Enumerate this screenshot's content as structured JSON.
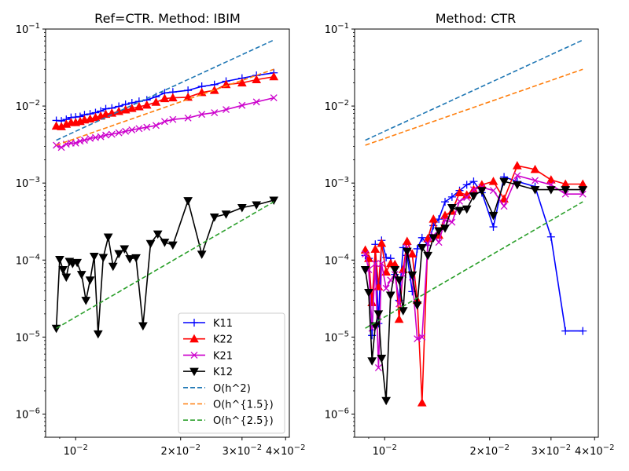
{
  "chart_data": [
    {
      "type": "line",
      "title": "Ref=CTR. Method: IBIM",
      "xscale": "log",
      "yscale": "log",
      "xlim": [
        0.0082,
        0.041
      ],
      "ylim": [
        5e-07,
        0.1
      ],
      "x_tick_labels": [
        "10^-2",
        "2×10^-2",
        "3×10^-2",
        "4×10^-2"
      ],
      "y_tick_labels": [
        "10^-6",
        "10^-5",
        "10^-4",
        "10^-3",
        "10^-2",
        "10^-1"
      ],
      "legend": "lower-right",
      "series": [
        {
          "name": "K11",
          "color": "#0000ff",
          "marker": "plus",
          "dash": "solid",
          "x": [
            0.0088,
            0.0091,
            0.0094,
            0.0097,
            0.01,
            0.0103,
            0.0106,
            0.011,
            0.0114,
            0.0118,
            0.0122,
            0.0127,
            0.0133,
            0.0139,
            0.0145,
            0.0152,
            0.016,
            0.017,
            0.018,
            0.019,
            0.021,
            0.023,
            0.025,
            0.027,
            0.03,
            0.033,
            0.037
          ],
          "y": [
            0.0065,
            0.0064,
            0.0067,
            0.0071,
            0.0072,
            0.0073,
            0.0077,
            0.0079,
            0.0082,
            0.0086,
            0.0092,
            0.0094,
            0.0099,
            0.0105,
            0.011,
            0.0115,
            0.012,
            0.0132,
            0.0148,
            0.0152,
            0.016,
            0.018,
            0.019,
            0.021,
            0.023,
            0.025,
            0.027
          ]
        },
        {
          "name": "K22",
          "color": "#ff0000",
          "marker": "triangle-up",
          "dash": "solid",
          "x": [
            0.0088,
            0.0091,
            0.0094,
            0.0097,
            0.01,
            0.0103,
            0.0106,
            0.011,
            0.0114,
            0.0118,
            0.0122,
            0.0127,
            0.0133,
            0.0139,
            0.0145,
            0.0152,
            0.016,
            0.017,
            0.018,
            0.019,
            0.021,
            0.023,
            0.025,
            0.027,
            0.03,
            0.033,
            0.037
          ],
          "y": [
            0.0055,
            0.0054,
            0.0058,
            0.0061,
            0.0061,
            0.0063,
            0.0066,
            0.0068,
            0.0071,
            0.0074,
            0.0078,
            0.0081,
            0.0085,
            0.0089,
            0.0093,
            0.0098,
            0.0103,
            0.0112,
            0.0125,
            0.0128,
            0.013,
            0.015,
            0.016,
            0.019,
            0.02,
            0.022,
            0.024
          ]
        },
        {
          "name": "K21",
          "color": "#cc00cc",
          "marker": "x",
          "dash": "solid",
          "x": [
            0.0088,
            0.0091,
            0.0094,
            0.0097,
            0.01,
            0.0103,
            0.0106,
            0.011,
            0.0114,
            0.0118,
            0.0122,
            0.0127,
            0.0133,
            0.0139,
            0.0145,
            0.0152,
            0.016,
            0.017,
            0.018,
            0.019,
            0.021,
            0.023,
            0.025,
            0.027,
            0.03,
            0.033,
            0.037
          ],
          "y": [
            0.0031,
            0.0029,
            0.0032,
            0.0033,
            0.0033,
            0.0035,
            0.0036,
            0.0038,
            0.0039,
            0.004,
            0.0042,
            0.0043,
            0.0045,
            0.0047,
            0.0049,
            0.0051,
            0.0053,
            0.0056,
            0.0063,
            0.0067,
            0.007,
            0.0078,
            0.0082,
            0.009,
            0.0102,
            0.0113,
            0.0128
          ]
        },
        {
          "name": "K12",
          "color": "#000000",
          "marker": "triangle-down",
          "dash": "solid",
          "x": [
            0.0088,
            0.009,
            0.0092,
            0.0094,
            0.0096,
            0.0098,
            0.0101,
            0.0104,
            0.0107,
            0.011,
            0.0113,
            0.0116,
            0.012,
            0.0124,
            0.0128,
            0.0133,
            0.0138,
            0.0143,
            0.0149,
            0.0156,
            0.0164,
            0.0172,
            0.018,
            0.019,
            0.021,
            0.023,
            0.025,
            0.027,
            0.03,
            0.033,
            0.037
          ],
          "y": [
            1.3e-05,
            0.000102,
            7.5e-05,
            6e-05,
            9.6e-05,
            9e-05,
            9.3e-05,
            6.5e-05,
            3e-05,
            5.5e-05,
            0.000112,
            1.1e-05,
            0.000108,
            0.000199,
            8.3e-05,
            0.000121,
            0.00014,
            0.000104,
            0.000107,
            1.4e-05,
            0.000164,
            0.000218,
            0.00017,
            0.000157,
            0.00059,
            0.000119,
            0.000362,
            0.000395,
            0.00048,
            0.00052,
            0.0006
          ]
        },
        {
          "name": "O(h^2)",
          "color": "#1f77b4",
          "marker": "none",
          "dash": "dashed",
          "x": [
            0.0088,
            0.037
          ],
          "y": [
            0.0036,
            0.072
          ]
        },
        {
          "name": "O(h^{1.5})",
          "color": "#ff7f0e",
          "marker": "none",
          "dash": "dashed",
          "x": [
            0.0088,
            0.037
          ],
          "y": [
            0.0031,
            0.03
          ]
        },
        {
          "name": "O(h^{2.5})",
          "color": "#2ca02c",
          "marker": "none",
          "dash": "dashed",
          "x": [
            0.0088,
            0.037
          ],
          "y": [
            1.3e-05,
            0.00057
          ]
        }
      ]
    },
    {
      "type": "line",
      "title": "Method: CTR",
      "xscale": "log",
      "yscale": "log",
      "xlim": [
        0.0082,
        0.041
      ],
      "ylim": [
        5e-07,
        0.1
      ],
      "x_tick_labels": [
        "10^-2",
        "2×10^-2",
        "3×10^-2",
        "4×10^-2"
      ],
      "y_tick_labels": [
        "10^-6",
        "10^-5",
        "10^-4",
        "10^-3",
        "10^-2",
        "10^-1"
      ],
      "series": [
        {
          "name": "K11",
          "color": "#0000ff",
          "marker": "plus",
          "dash": "solid",
          "x": [
            0.0088,
            0.009,
            0.0092,
            0.0094,
            0.0096,
            0.0098,
            0.0101,
            0.0104,
            0.0107,
            0.011,
            0.0113,
            0.0116,
            0.012,
            0.0124,
            0.0128,
            0.0133,
            0.0138,
            0.0143,
            0.0149,
            0.0156,
            0.0164,
            0.0172,
            0.018,
            0.019,
            0.0205,
            0.022,
            0.024,
            0.027,
            0.03,
            0.033,
            0.037
          ],
          "y": [
            0.000115,
            0.000105,
            1.05e-05,
            0.00016,
            1.5e-05,
            0.00018,
            0.000108,
            0.000105,
            6.5e-05,
            3e-05,
            0.000145,
            0.000115,
            3.9e-05,
            0.00014,
            0.000195,
            0.000155,
            0.00028,
            0.00034,
            0.00057,
            0.00066,
            0.0008,
            0.00095,
            0.00105,
            0.00075,
            0.00027,
            0.0012,
            0.00105,
            0.0009,
            0.0002,
            1.2e-05,
            1.2e-05
          ]
        },
        {
          "name": "K22",
          "color": "#ff0000",
          "marker": "triangle-up",
          "dash": "solid",
          "x": [
            0.0088,
            0.009,
            0.0092,
            0.0094,
            0.0096,
            0.0098,
            0.0101,
            0.0104,
            0.0107,
            0.011,
            0.0113,
            0.0116,
            0.012,
            0.0124,
            0.0128,
            0.0133,
            0.0138,
            0.0143,
            0.0149,
            0.0156,
            0.0164,
            0.0172,
            0.018,
            0.019,
            0.0205,
            0.022,
            0.024,
            0.027,
            0.03,
            0.033,
            0.037
          ],
          "y": [
            0.000135,
            0.000105,
            2.8e-05,
            0.000138,
            4.5e-05,
            0.000165,
            7e-05,
            9e-05,
            8.8e-05,
            1.7e-05,
            7.5e-05,
            0.000175,
            0.00012,
            3e-05,
            1.4e-06,
            0.00019,
            0.00034,
            0.00021,
            0.00038,
            0.00043,
            0.00075,
            0.0007,
            0.00082,
            0.00095,
            0.00105,
            0.00062,
            0.00168,
            0.0015,
            0.0011,
            0.00097,
            0.00097
          ]
        },
        {
          "name": "K21",
          "color": "#cc00cc",
          "marker": "x",
          "dash": "solid",
          "x": [
            0.0088,
            0.009,
            0.0092,
            0.0094,
            0.0096,
            0.0098,
            0.0101,
            0.0104,
            0.0107,
            0.011,
            0.0113,
            0.0116,
            0.012,
            0.0124,
            0.0128,
            0.0133,
            0.0138,
            0.0143,
            0.0149,
            0.0156,
            0.0164,
            0.0172,
            0.018,
            0.019,
            0.0205,
            0.022,
            0.024,
            0.027,
            0.03,
            0.033,
            0.037
          ],
          "y": [
            0.00012,
            7.5e-05,
            1.3e-05,
            9e-05,
            4e-06,
            9e-05,
            4.3e-05,
            5.5e-05,
            6.5e-05,
            2.7e-05,
            6.5e-05,
            0.000145,
            6e-05,
            9.5e-06,
            1e-05,
            0.000165,
            0.00021,
            0.00017,
            0.00033,
            0.00031,
            0.00058,
            0.00065,
            0.00082,
            0.00088,
            0.0008,
            0.0005,
            0.00125,
            0.00108,
            0.00095,
            0.00072,
            0.00072
          ]
        },
        {
          "name": "K12",
          "color": "#000000",
          "marker": "triangle-down",
          "dash": "solid",
          "x": [
            0.0088,
            0.009,
            0.0092,
            0.0094,
            0.0096,
            0.0098,
            0.0101,
            0.0104,
            0.0107,
            0.011,
            0.0113,
            0.0116,
            0.012,
            0.0124,
            0.0128,
            0.0133,
            0.0138,
            0.0143,
            0.0149,
            0.0156,
            0.0164,
            0.0172,
            0.018,
            0.019,
            0.0205,
            0.022,
            0.024,
            0.027,
            0.03,
            0.033,
            0.037
          ],
          "y": [
            7.5e-05,
            3.8e-05,
            4.9e-06,
            1.4e-05,
            2e-05,
            5.3e-06,
            1.5e-06,
            3.5e-05,
            7.5e-05,
            5.5e-05,
            2.2e-05,
            0.00013,
            6.4e-05,
            2.6e-05,
            0.000145,
            0.000115,
            0.000195,
            0.00024,
            0.00026,
            0.00048,
            0.00044,
            0.00046,
            0.00068,
            0.0008,
            0.00038,
            0.00105,
            0.00095,
            0.00082,
            0.00082,
            0.00082,
            0.00082
          ]
        },
        {
          "name": "O(h^2)",
          "color": "#1f77b4",
          "marker": "none",
          "dash": "dashed",
          "x": [
            0.0088,
            0.037
          ],
          "y": [
            0.0036,
            0.072
          ]
        },
        {
          "name": "O(h^{1.5})",
          "color": "#ff7f0e",
          "marker": "none",
          "dash": "dashed",
          "x": [
            0.0088,
            0.037
          ],
          "y": [
            0.0031,
            0.03
          ]
        },
        {
          "name": "O(h^{2.5})",
          "color": "#2ca02c",
          "marker": "none",
          "dash": "dashed",
          "x": [
            0.0088,
            0.037
          ],
          "y": [
            1.3e-05,
            0.00057
          ]
        }
      ]
    }
  ]
}
